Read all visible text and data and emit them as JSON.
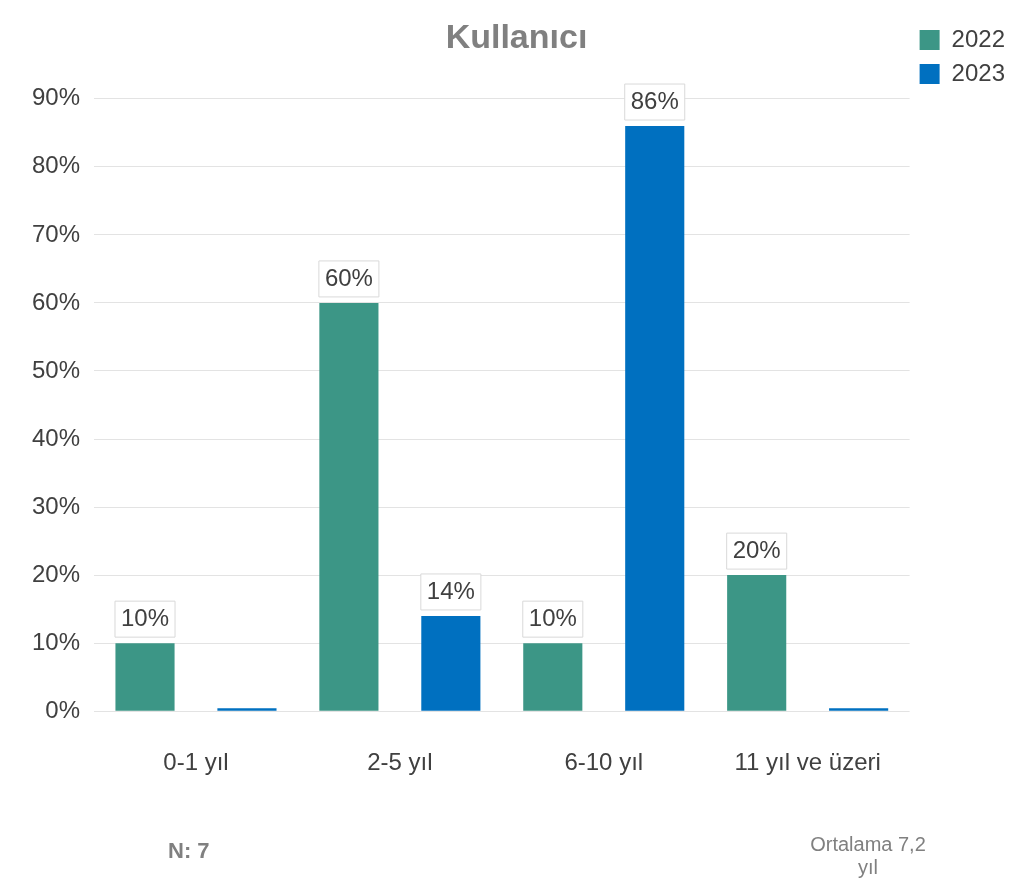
{
  "chart_data": {
    "type": "bar",
    "title": "Kullanıcı",
    "categories": [
      "0-1 yıl",
      "2-5 yıl",
      "6-10 yıl",
      "11 yıl ve üzeri"
    ],
    "series": [
      {
        "name": "2022",
        "color": "#3c9686",
        "values": [
          10,
          60,
          10,
          20
        ],
        "value_labels": [
          "10%",
          "60%",
          "10%",
          "20%"
        ]
      },
      {
        "name": "2023",
        "color": "#0070c0",
        "values": [
          0,
          14,
          86,
          0
        ],
        "value_labels": [
          null,
          "14%",
          "86%",
          null
        ]
      }
    ],
    "ylim": [
      0,
      90
    ],
    "yticks": [
      {
        "value": 0,
        "label": "0%"
      },
      {
        "value": 10,
        "label": "10%"
      },
      {
        "value": 20,
        "label": "20%"
      },
      {
        "value": 30,
        "label": "30%"
      },
      {
        "value": 40,
        "label": "40%"
      },
      {
        "value": 50,
        "label": "50%"
      },
      {
        "value": 60,
        "label": "60%"
      },
      {
        "value": 70,
        "label": "70%"
      },
      {
        "value": 80,
        "label": "80%"
      },
      {
        "value": 90,
        "label": "90%"
      }
    ],
    "grid": "y",
    "legend": "top right",
    "annotations": [
      "N: 7",
      "Ortalama 7,2 yıl"
    ]
  }
}
